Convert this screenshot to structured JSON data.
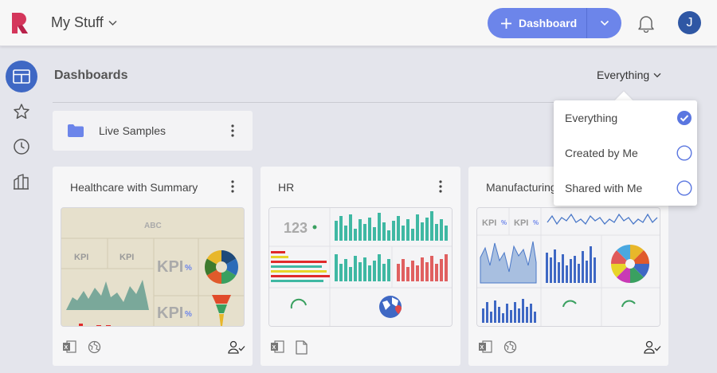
{
  "header": {
    "app_title": "My Stuff",
    "dashboard_button_label": "Dashboard",
    "avatar_initial": "J"
  },
  "colors": {
    "accent": "#6c85ea",
    "avatar": "#2f57a4",
    "nav_active": "#3f68c4"
  },
  "nav": {
    "items": [
      "dashboards-icon",
      "favorites-star-icon",
      "recent-clock-icon",
      "library-icon"
    ],
    "active_index": 0
  },
  "section": {
    "title": "Dashboards",
    "filter_label": "Everything"
  },
  "filter_menu": {
    "options": [
      "Everything",
      "Created by Me",
      "Shared with Me"
    ],
    "selected": "Everything"
  },
  "folders": [
    {
      "name": "Live Samples"
    }
  ],
  "dashboards": [
    {
      "title": "Healthcare with Summary",
      "footer_icons": [
        "excel-icon",
        "globe-icon",
        "user-check-icon"
      ]
    },
    {
      "title": "HR",
      "footer_icons": [
        "excel-icon",
        "document-icon"
      ]
    },
    {
      "title": "Manufacturing",
      "footer_icons": [
        "excel-icon",
        "globe-icon",
        "user-check-icon"
      ]
    }
  ],
  "thumbs": {
    "healthcare": {
      "header": "ABC",
      "kpi": "KPI",
      "kpi_unit": "%"
    },
    "hr": {
      "number": "123"
    },
    "manufacturing": {
      "kpi": "KPI",
      "kpi_unit": "%"
    }
  }
}
